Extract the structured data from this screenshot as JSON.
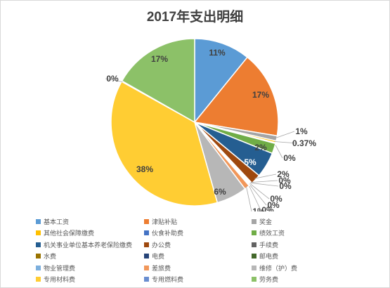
{
  "chart_data": {
    "type": "pie",
    "title": "2017年支出明细",
    "series": [
      {
        "name": "基本工资",
        "value": 11,
        "label": "11%",
        "color": "#5B9BD5"
      },
      {
        "name": "津贴补贴",
        "value": 17,
        "label": "17%",
        "color": "#ED7D31"
      },
      {
        "name": "奖金",
        "value": 1,
        "label": "1%",
        "color": "#A5A5A5"
      },
      {
        "name": "其他社会保障缴费",
        "value": 0.37,
        "label": "0.37%",
        "color": "#FFC000"
      },
      {
        "name": "伙食补助费",
        "value": 0,
        "label": "0%",
        "color": "#4472C4"
      },
      {
        "name": "绩效工资",
        "value": 2,
        "label": "2%",
        "color": "#70AD47"
      },
      {
        "name": "机关事业单位基本养老保险缴费",
        "value": 5,
        "label": "5%",
        "color": "#255E91"
      },
      {
        "name": "办公费",
        "value": 2,
        "label": "2%",
        "color": "#9E480E"
      },
      {
        "name": "手续费",
        "value": 0,
        "label": "0%",
        "color": "#636363"
      },
      {
        "name": "水费",
        "value": 0,
        "label": "0%",
        "color": "#997300"
      },
      {
        "name": "电费",
        "value": 0,
        "label": "0%",
        "color": "#264478"
      },
      {
        "name": "邮电费",
        "value": 0,
        "label": "0%",
        "color": "#43682B"
      },
      {
        "name": "物业管理费",
        "value": 0,
        "label": "0%",
        "color": "#7CAFDD"
      },
      {
        "name": "差旅费",
        "value": 1,
        "label": "1%",
        "color": "#F1975A"
      },
      {
        "name": "维修（护）费",
        "value": 6,
        "label": "6%",
        "color": "#B7B7B7"
      },
      {
        "name": "专用材料费",
        "value": 38,
        "label": "38%",
        "color": "#FFCD33"
      },
      {
        "name": "专用燃料费",
        "value": 0,
        "label": "0%",
        "color": "#698ED0"
      },
      {
        "name": "劳务费",
        "value": 17,
        "label": "17%",
        "color": "#8CC168"
      }
    ],
    "legend_position": "bottom"
  }
}
